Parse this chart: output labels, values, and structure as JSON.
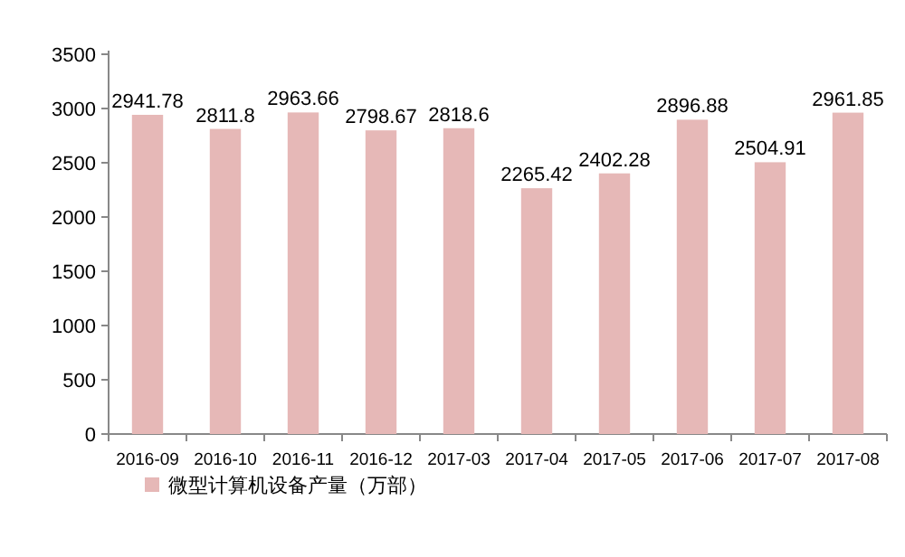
{
  "chart_data": {
    "type": "bar",
    "categories": [
      "2016-09",
      "2016-10",
      "2016-11",
      "2016-12",
      "2017-03",
      "2017-04",
      "2017-05",
      "2017-06",
      "2017-07",
      "2017-08"
    ],
    "series": [
      {
        "name": "微型计算机设备产量（万部）",
        "color": "#e6b8b7",
        "values": [
          2941.78,
          2811.8,
          2963.66,
          2798.67,
          2818.6,
          2265.42,
          2402.28,
          2896.88,
          2504.91,
          2961.85
        ]
      }
    ],
    "ylim": [
      0,
      3500
    ],
    "yticks": [
      0,
      500,
      1000,
      1500,
      2000,
      2500,
      3000,
      3500
    ],
    "data_labels": true,
    "legend": "bottom"
  }
}
